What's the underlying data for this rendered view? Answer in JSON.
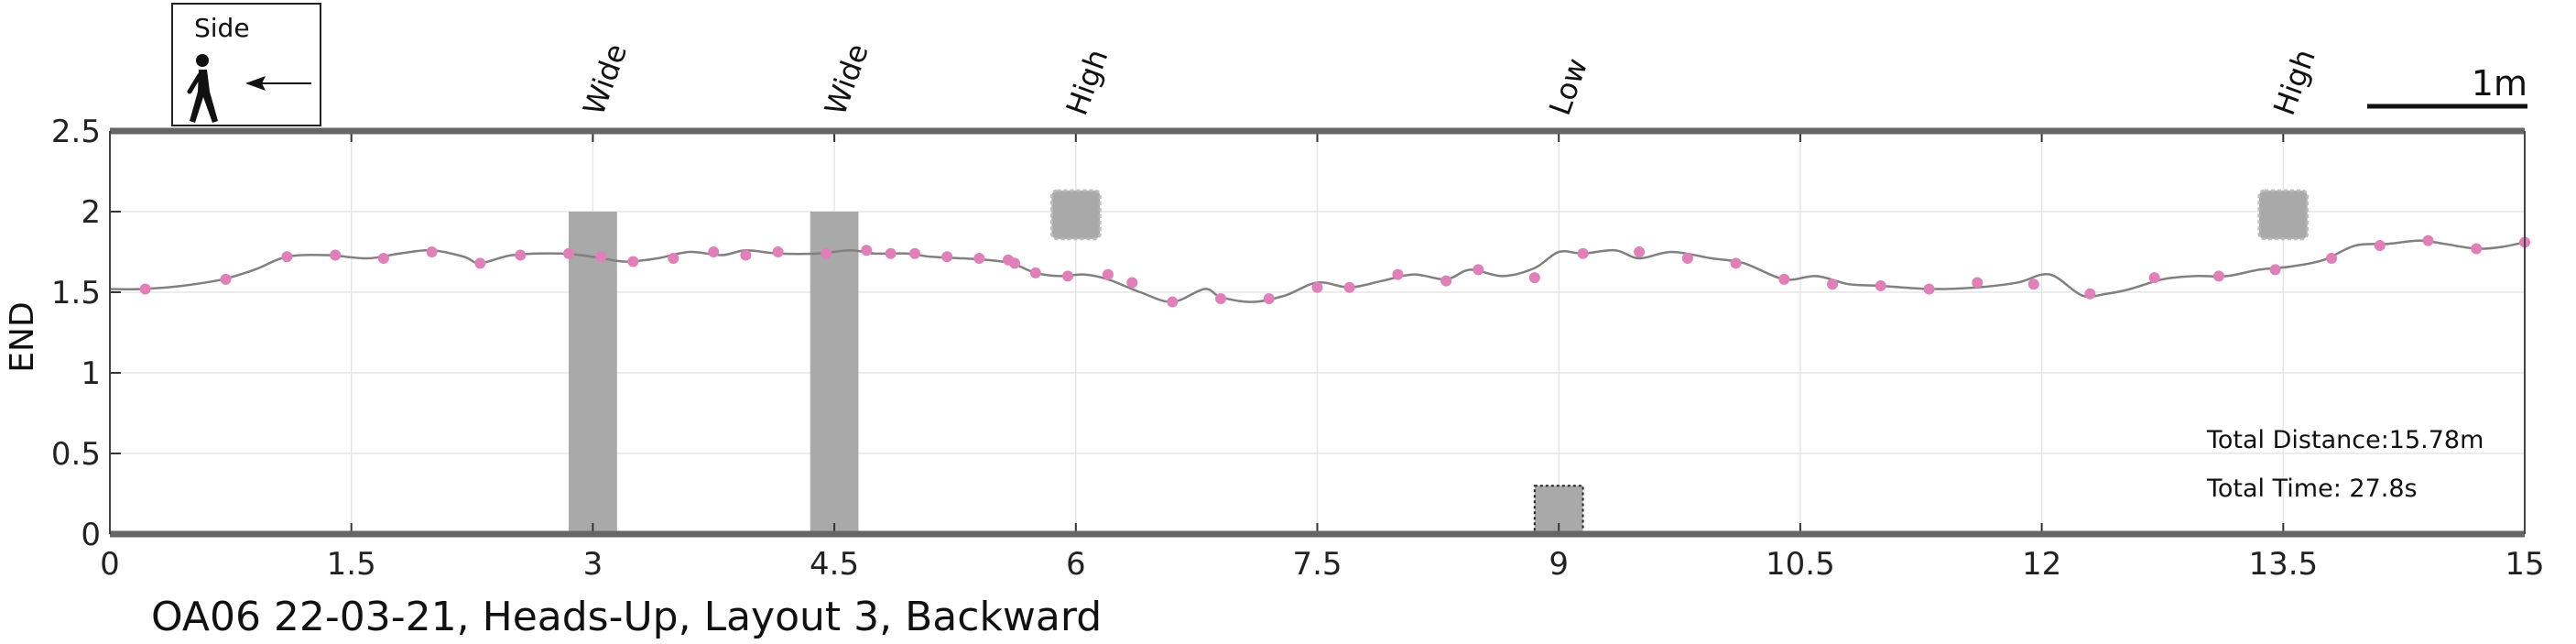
{
  "chart_data": {
    "type": "line",
    "title": "OA06 22-03-21, Heads-Up, Layout 3, Backward",
    "xlabel": "",
    "ylabel": "END",
    "xlim": [
      0,
      15
    ],
    "ylim": [
      0,
      2.5
    ],
    "grid": true,
    "x_ticks": [
      {
        "value": 0,
        "label": "0"
      },
      {
        "value": 1.5,
        "label": "1.5"
      },
      {
        "value": 3,
        "label": "3"
      },
      {
        "value": 4.5,
        "label": "4.5"
      },
      {
        "value": 6,
        "label": "6"
      },
      {
        "value": 7.5,
        "label": "7.5"
      },
      {
        "value": 9,
        "label": "9"
      },
      {
        "value": 10.5,
        "label": "10.5"
      },
      {
        "value": 12,
        "label": "12"
      },
      {
        "value": 13.5,
        "label": "13.5"
      },
      {
        "value": 15,
        "label": "15"
      }
    ],
    "y_ticks": [
      {
        "value": 0,
        "label": "0"
      },
      {
        "value": 0.5,
        "label": "0.5"
      },
      {
        "value": 1,
        "label": "1"
      },
      {
        "value": 1.5,
        "label": "1.5"
      },
      {
        "value": 2,
        "label": "2"
      },
      {
        "value": 2.5,
        "label": "2.5"
      }
    ],
    "line_color": "#808080",
    "marker_color": "#e07fb8",
    "obstacle_color": "#a9a9a9",
    "trace": {
      "x": [
        0,
        0.2,
        0.45,
        0.7,
        0.9,
        1.1,
        1.35,
        1.6,
        1.8,
        2.0,
        2.2,
        2.3,
        2.5,
        2.8,
        3.0,
        3.2,
        3.4,
        3.6,
        3.8,
        3.95,
        4.15,
        4.4,
        4.6,
        4.75,
        4.95,
        5.1,
        5.3,
        5.45,
        5.6,
        5.75,
        5.9,
        6.05,
        6.2,
        6.4,
        6.6,
        6.8,
        6.9,
        7.1,
        7.3,
        7.5,
        7.7,
        7.9,
        8.1,
        8.3,
        8.45,
        8.65,
        8.85,
        9.0,
        9.15,
        9.35,
        9.5,
        9.7,
        9.95,
        10.15,
        10.4,
        10.6,
        10.8,
        11.0,
        11.3,
        11.6,
        11.85,
        12.05,
        12.25,
        12.4,
        12.55,
        12.75,
        12.95,
        13.15,
        13.35,
        13.55,
        13.75,
        13.95,
        14.15,
        14.35,
        14.5,
        14.7,
        14.85,
        15.0
      ],
      "y": [
        1.52,
        1.52,
        1.54,
        1.58,
        1.64,
        1.72,
        1.73,
        1.71,
        1.74,
        1.76,
        1.72,
        1.68,
        1.73,
        1.74,
        1.72,
        1.69,
        1.71,
        1.75,
        1.73,
        1.76,
        1.74,
        1.74,
        1.76,
        1.74,
        1.74,
        1.72,
        1.71,
        1.7,
        1.68,
        1.62,
        1.6,
        1.61,
        1.58,
        1.5,
        1.44,
        1.52,
        1.47,
        1.44,
        1.48,
        1.56,
        1.53,
        1.57,
        1.61,
        1.58,
        1.64,
        1.6,
        1.65,
        1.75,
        1.74,
        1.76,
        1.71,
        1.75,
        1.71,
        1.68,
        1.58,
        1.6,
        1.55,
        1.54,
        1.52,
        1.53,
        1.56,
        1.61,
        1.48,
        1.49,
        1.52,
        1.58,
        1.6,
        1.6,
        1.64,
        1.66,
        1.7,
        1.79,
        1.8,
        1.82,
        1.8,
        1.77,
        1.78,
        1.81
      ]
    },
    "markers": {
      "x": [
        0.22,
        0.72,
        1.1,
        1.4,
        1.7,
        2.0,
        2.3,
        2.55,
        2.85,
        3.05,
        3.25,
        3.5,
        3.75,
        3.95,
        4.15,
        4.45,
        4.7,
        4.85,
        5.0,
        5.2,
        5.4,
        5.58,
        5.62,
        5.75,
        5.95,
        6.2,
        6.35,
        6.6,
        6.9,
        7.2,
        7.5,
        7.7,
        8.0,
        8.3,
        8.5,
        8.85,
        9.15,
        9.5,
        9.8,
        10.1,
        10.4,
        10.7,
        11.0,
        11.3,
        11.6,
        11.95,
        12.3,
        12.7,
        13.1,
        13.45,
        13.8,
        14.1,
        14.4,
        14.7,
        15.0
      ],
      "y": [
        1.52,
        1.58,
        1.72,
        1.73,
        1.71,
        1.75,
        1.68,
        1.73,
        1.74,
        1.72,
        1.69,
        1.71,
        1.75,
        1.73,
        1.75,
        1.74,
        1.76,
        1.74,
        1.74,
        1.72,
        1.71,
        1.7,
        1.68,
        1.62,
        1.6,
        1.61,
        1.56,
        1.44,
        1.46,
        1.46,
        1.53,
        1.53,
        1.61,
        1.57,
        1.64,
        1.59,
        1.74,
        1.75,
        1.71,
        1.68,
        1.58,
        1.55,
        1.54,
        1.52,
        1.56,
        1.55,
        1.49,
        1.59,
        1.6,
        1.64,
        1.71,
        1.79,
        1.82,
        1.77,
        1.81
      ]
    },
    "obstacles": [
      {
        "label": "Wide",
        "type": "wide",
        "x": 3.0,
        "x_from": 2.85,
        "x_to": 3.15,
        "y_from": 0,
        "y_to": 2.0
      },
      {
        "label": "Wide",
        "type": "wide",
        "x": 4.5,
        "x_from": 4.35,
        "x_to": 4.65,
        "y_from": 0,
        "y_to": 2.0
      },
      {
        "label": "High",
        "type": "high",
        "x": 6.0,
        "x_from": 5.85,
        "x_to": 6.15,
        "y_from": 1.83,
        "y_to": 2.13
      },
      {
        "label": "Low",
        "type": "low",
        "x": 9.0,
        "x_from": 8.85,
        "x_to": 9.15,
        "y_from": 0,
        "y_to": 0.3
      },
      {
        "label": "High",
        "type": "high",
        "x": 13.5,
        "x_from": 13.35,
        "x_to": 13.65,
        "y_from": 1.83,
        "y_to": 2.13
      }
    ],
    "annotations": {
      "total_distance": "Total Distance:15.78m",
      "total_time": "Total Time: 27.8s"
    },
    "legend": {
      "label": "Side",
      "icon": "walking-person-icon",
      "direction_icon": "arrow-left-icon",
      "placement": "top-left"
    },
    "scale_bar": {
      "label": "1m",
      "length": 1
    }
  }
}
